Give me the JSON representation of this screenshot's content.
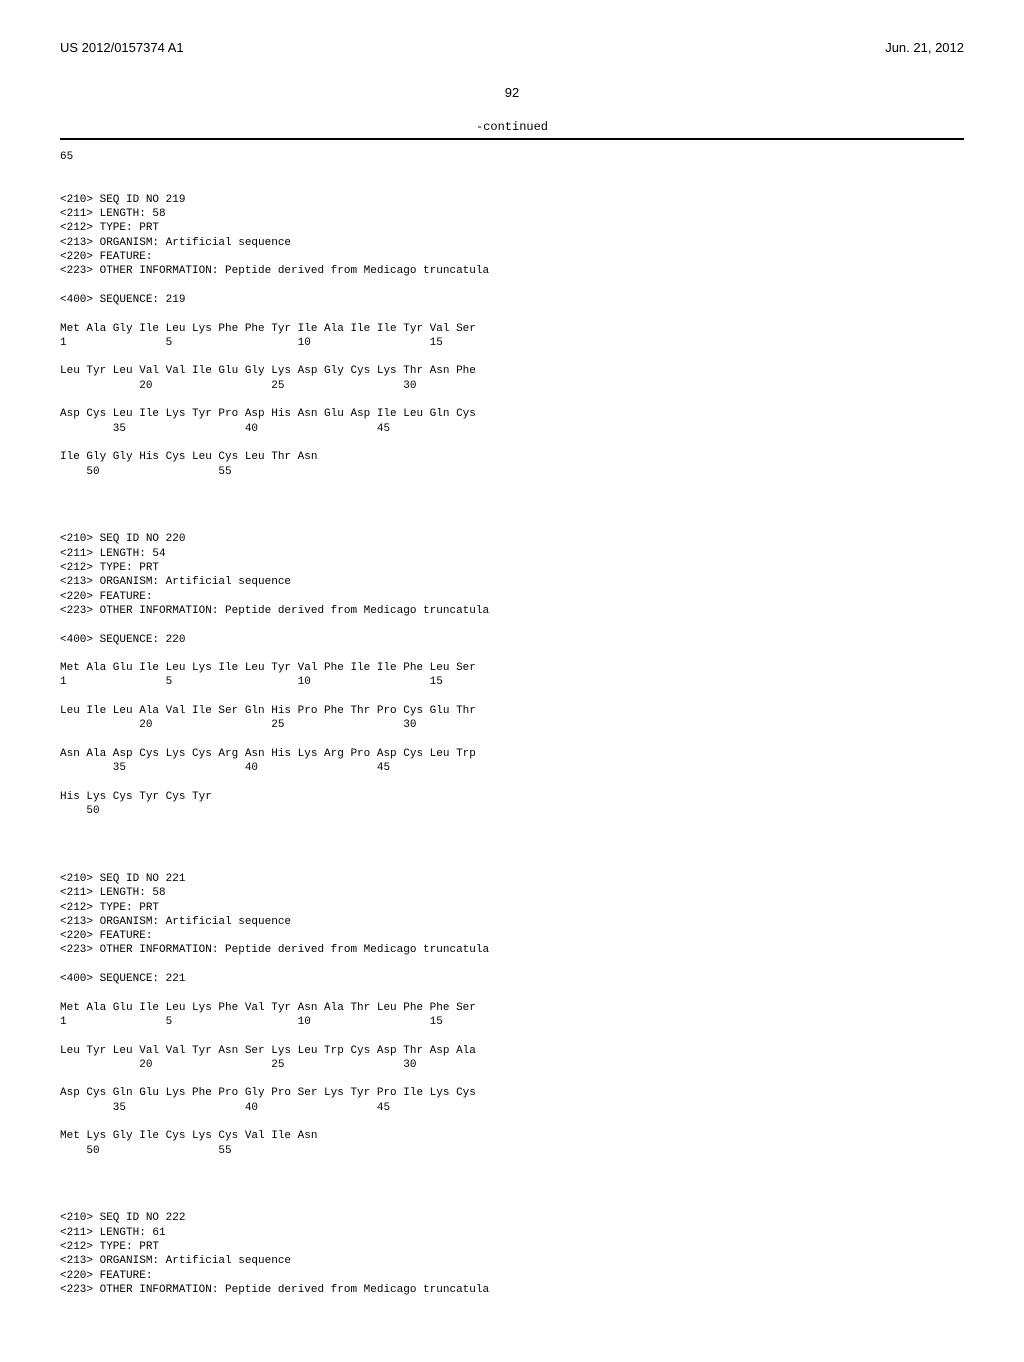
{
  "header": {
    "left": "US 2012/0157374 A1",
    "right": "Jun. 21, 2012"
  },
  "page_number": "92",
  "continued_label": "-continued",
  "trailing_number": "65",
  "sequences": [
    {
      "meta": [
        "<210> SEQ ID NO 219",
        "<211> LENGTH: 58",
        "<212> TYPE: PRT",
        "<213> ORGANISM: Artificial sequence",
        "<220> FEATURE:",
        "<223> OTHER INFORMATION: Peptide derived from Medicago truncatula"
      ],
      "seq_header": "<400> SEQUENCE: 219",
      "lines": [
        "Met Ala Gly Ile Leu Lys Phe Phe Tyr Ile Ala Ile Ile Tyr Val Ser",
        "1               5                   10                  15",
        "",
        "Leu Tyr Leu Val Val Ile Glu Gly Lys Asp Gly Cys Lys Thr Asn Phe",
        "            20                  25                  30",
        "",
        "Asp Cys Leu Ile Lys Tyr Pro Asp His Asn Glu Asp Ile Leu Gln Cys",
        "        35                  40                  45",
        "",
        "Ile Gly Gly His Cys Leu Cys Leu Thr Asn",
        "    50                  55"
      ]
    },
    {
      "meta": [
        "<210> SEQ ID NO 220",
        "<211> LENGTH: 54",
        "<212> TYPE: PRT",
        "<213> ORGANISM: Artificial sequence",
        "<220> FEATURE:",
        "<223> OTHER INFORMATION: Peptide derived from Medicago truncatula"
      ],
      "seq_header": "<400> SEQUENCE: 220",
      "lines": [
        "Met Ala Glu Ile Leu Lys Ile Leu Tyr Val Phe Ile Ile Phe Leu Ser",
        "1               5                   10                  15",
        "",
        "Leu Ile Leu Ala Val Ile Ser Gln His Pro Phe Thr Pro Cys Glu Thr",
        "            20                  25                  30",
        "",
        "Asn Ala Asp Cys Lys Cys Arg Asn His Lys Arg Pro Asp Cys Leu Trp",
        "        35                  40                  45",
        "",
        "His Lys Cys Tyr Cys Tyr",
        "    50"
      ]
    },
    {
      "meta": [
        "<210> SEQ ID NO 221",
        "<211> LENGTH: 58",
        "<212> TYPE: PRT",
        "<213> ORGANISM: Artificial sequence",
        "<220> FEATURE:",
        "<223> OTHER INFORMATION: Peptide derived from Medicago truncatula"
      ],
      "seq_header": "<400> SEQUENCE: 221",
      "lines": [
        "Met Ala Glu Ile Leu Lys Phe Val Tyr Asn Ala Thr Leu Phe Phe Ser",
        "1               5                   10                  15",
        "",
        "Leu Tyr Leu Val Val Tyr Asn Ser Lys Leu Trp Cys Asp Thr Asp Ala",
        "            20                  25                  30",
        "",
        "Asp Cys Gln Glu Lys Phe Pro Gly Pro Ser Lys Tyr Pro Ile Lys Cys",
        "        35                  40                  45",
        "",
        "Met Lys Gly Ile Cys Lys Cys Val Ile Asn",
        "    50                  55"
      ]
    },
    {
      "meta": [
        "<210> SEQ ID NO 222",
        "<211> LENGTH: 61",
        "<212> TYPE: PRT",
        "<213> ORGANISM: Artificial sequence",
        "<220> FEATURE:",
        "<223> OTHER INFORMATION: Peptide derived from Medicago truncatula"
      ],
      "seq_header": "",
      "lines": []
    }
  ]
}
